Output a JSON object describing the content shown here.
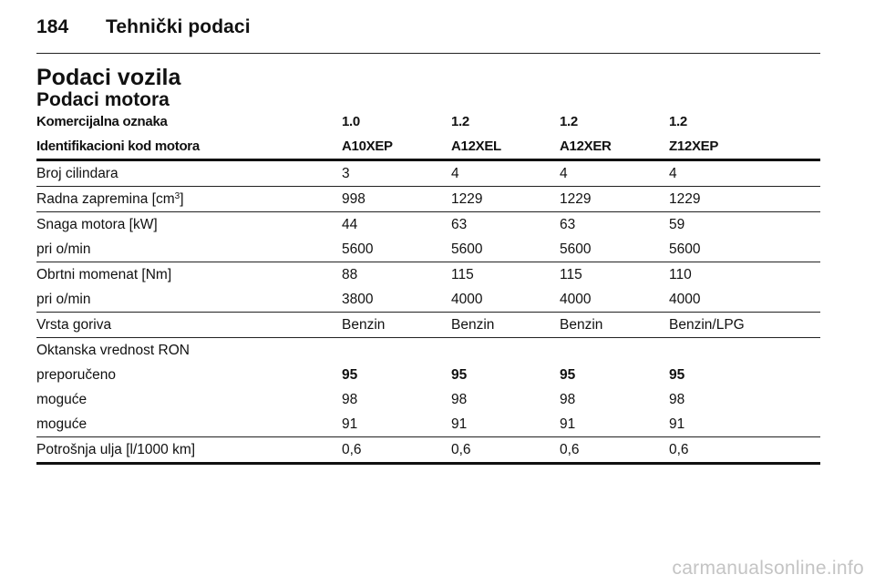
{
  "header": {
    "page_number": "184",
    "section": "Tehnički podaci"
  },
  "title": "Podaci vozila",
  "subtitle": "Podaci motora",
  "table": {
    "head": [
      [
        "Komercijalna oznaka",
        "1.0",
        "1.2",
        "1.2",
        "1.2"
      ],
      [
        "Identifikacioni kod motora",
        "A10XEP",
        "A12XEL",
        "A12XER",
        "Z12XEP"
      ]
    ],
    "cylinders": [
      "Broj cilindara",
      "3",
      "4",
      "4",
      "4"
    ],
    "displacement": {
      "label": "Radna zapremina [cm",
      "sup": "3",
      "suffix": "]",
      "values": [
        "998",
        "1229",
        "1229",
        "1229"
      ]
    },
    "power": [
      "Snaga motora [kW]",
      "44",
      "63",
      "63",
      "59"
    ],
    "power_rpm": [
      "pri o/min",
      "5600",
      "5600",
      "5600",
      "5600"
    ],
    "torque": [
      "Obrtni momenat [Nm]",
      "88",
      "115",
      "115",
      "110"
    ],
    "torque_rpm": [
      "pri o/min",
      "3800",
      "4000",
      "4000",
      "4000"
    ],
    "fuel": [
      "Vrsta goriva",
      "Benzin",
      "Benzin",
      "Benzin",
      "Benzin/LPG"
    ],
    "octane_title": "Oktanska vrednost RON",
    "octane_recommended": [
      "preporučeno",
      "95",
      "95",
      "95",
      "95"
    ],
    "octane_possible_1": [
      "moguće",
      "98",
      "98",
      "98",
      "98"
    ],
    "octane_possible_2": [
      "moguće",
      "91",
      "91",
      "91",
      "91"
    ],
    "oil": [
      "Potrošnja ulja [l/1000 km]",
      "0,6",
      "0,6",
      "0,6",
      "0,6"
    ]
  },
  "watermark": "carmanualsonline.info"
}
